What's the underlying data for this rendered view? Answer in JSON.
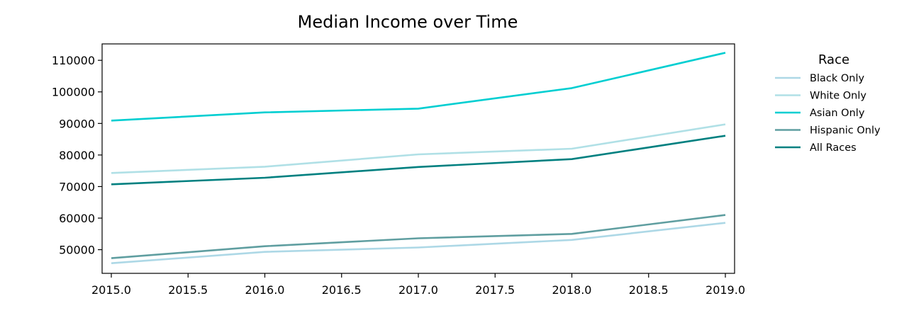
{
  "chart_data": {
    "type": "line",
    "title": "Median Income over Time",
    "xlabel": "",
    "ylabel": "",
    "x": [
      2015,
      2016,
      2017,
      2018,
      2019
    ],
    "xlim": [
      2014.94,
      2019.06
    ],
    "ylim": [
      42500,
      115200
    ],
    "xticks": [
      2015.0,
      2015.5,
      2016.0,
      2016.5,
      2017.0,
      2017.5,
      2018.0,
      2018.5,
      2019.0
    ],
    "xtick_labels": [
      "2015.0",
      "2015.5",
      "2016.0",
      "2016.5",
      "2017.0",
      "2017.5",
      "2018.0",
      "2018.5",
      "2019.0"
    ],
    "yticks": [
      50000,
      60000,
      70000,
      80000,
      90000,
      100000,
      110000
    ],
    "ytick_labels": [
      "50000",
      "60000",
      "70000",
      "80000",
      "90000",
      "100000",
      "110000"
    ],
    "grid": false,
    "legend": {
      "title": "Race",
      "placement": "outside-right"
    },
    "series": [
      {
        "name": "Black Only",
        "color": "#add8e6",
        "values": [
          45700,
          49300,
          50700,
          53100,
          58500
        ]
      },
      {
        "name": "White Only",
        "color": "#b0e0e6",
        "values": [
          74300,
          76300,
          80200,
          82000,
          89700
        ]
      },
      {
        "name": "Asian Only",
        "color": "#00ced1",
        "values": [
          90900,
          93500,
          94700,
          101200,
          112400
        ]
      },
      {
        "name": "Hispanic Only",
        "color": "#5f9ea0",
        "values": [
          47300,
          51100,
          53600,
          55000,
          61000
        ]
      },
      {
        "name": "All Races",
        "color": "#008080",
        "values": [
          70700,
          72800,
          76200,
          78700,
          86100
        ]
      }
    ]
  }
}
